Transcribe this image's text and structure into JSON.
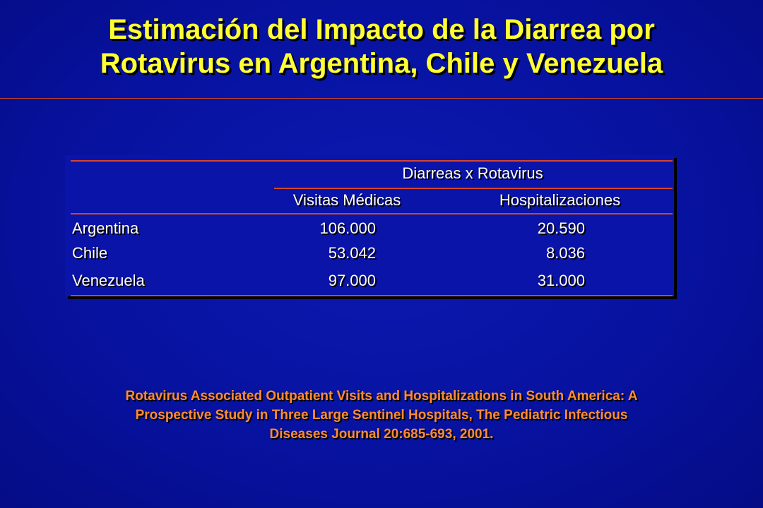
{
  "slide": {
    "title_line1": "Estimación del Impacto de la Diarrea por",
    "title_line2": "Rotavirus en Argentina, Chile y Venezuela"
  },
  "table": {
    "group_header": "Diarreas x Rotavirus",
    "columns": [
      "Visitas Médicas",
      "Hospitalizaciones"
    ],
    "rows": [
      {
        "country": "Argentina",
        "visits": "106.000",
        "hospitalizations": "20.590"
      },
      {
        "country": "Chile",
        "visits": "53.042",
        "hospitalizations": "8.036"
      },
      {
        "country": "Venezuela",
        "visits": "97.000",
        "hospitalizations": "31.000"
      }
    ]
  },
  "citation": {
    "line1": "Rotavirus Associated Outpatient Visits and Hospitalizations in South America: A",
    "line2": "Prospective Study in Three Large Sentinel Hospitals, The Pediatric Infectious",
    "line3": "Diseases Journal 20:685-693, 2001."
  },
  "colors": {
    "background": "#0712a0",
    "title": "#ffff33",
    "citation": "#ff8c33",
    "rules": "#d4452c"
  }
}
